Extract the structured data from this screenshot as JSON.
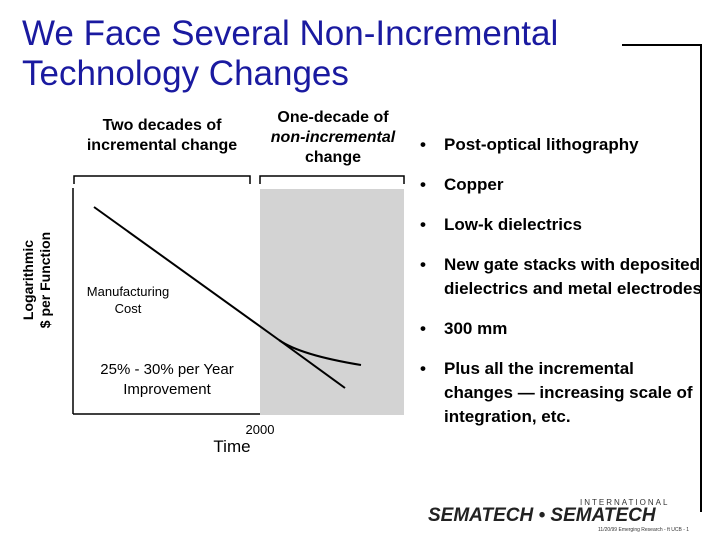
{
  "slide": {
    "title_line1": "We Face Several Non-Incremental",
    "title_line2": "Technology Changes",
    "header_left": [
      "Two decades of",
      "incremental change"
    ],
    "header_right": [
      "One-decade of",
      "non-incremental",
      "change"
    ],
    "y_axis_label": [
      "Logarithmic",
      "$ per Function"
    ],
    "x_axis_label": "Time",
    "year_label": "2000",
    "curve_label": [
      "Manufacturing",
      "Cost"
    ],
    "trend_label": [
      "25% - 30% per Year",
      "Improvement"
    ],
    "bullets": [
      "Post-optical lithography",
      "Copper",
      "Low-k dielectrics",
      "New gate stacks with deposited dielectrics and metal electrodes",
      "300 mm",
      "Plus all the incremental changes — increasing scale of integration, etc."
    ],
    "logo": {
      "top": "INTERNATIONAL",
      "main": "SEMATECH • SEMATECH"
    },
    "footer": "11/20/99 Emerging Research - ft UCB - 1"
  },
  "colors": {
    "title": "#1a1aa0",
    "shaded_region": "#d3d3d3",
    "line": "#000000"
  }
}
